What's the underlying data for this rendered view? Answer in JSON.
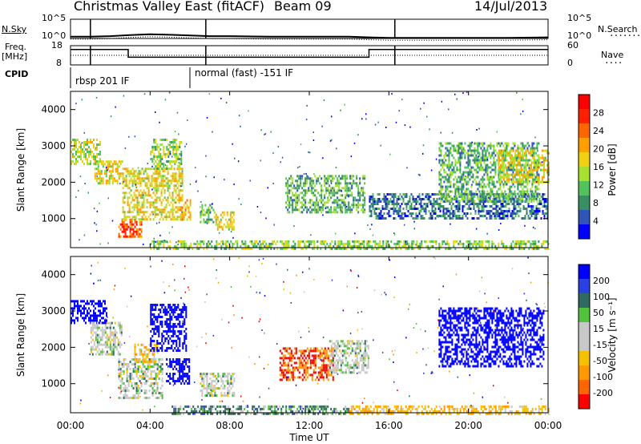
{
  "header": {
    "station": "Christmas Valley East (fitACF)",
    "beam": "Beam 09",
    "date": "14/Jul/2013"
  },
  "noise_panel": {
    "left_label": "N.Sky",
    "right_label": "N.Search",
    "ticks_left": [
      "10^5",
      "10^0"
    ],
    "ticks_right": [
      "10^5",
      "10^0"
    ]
  },
  "freq_panel": {
    "left_label_1": "Freq.",
    "left_label_2": "[MHz]",
    "right_label": "Nave",
    "ticks_left": [
      "18",
      "8"
    ],
    "ticks_right": [
      "60",
      "0"
    ]
  },
  "cpid": {
    "label": "CPID",
    "segments": [
      {
        "text": "rbsp 201 IF",
        "start_h": 0,
        "end_h": 6
      },
      {
        "text": "normal (fast) -151 IF",
        "start_h": 6,
        "end_h": 24
      }
    ]
  },
  "power_panel": {
    "ylabel": "Slant Range [km]",
    "colorbar_label": "Power [dB]",
    "colorbar_ticks": [
      "28",
      "24",
      "20",
      "16",
      "12",
      "8",
      "4"
    ]
  },
  "velocity_panel": {
    "ylabel": "Slant Range [km]",
    "colorbar_label": "Velocity [m s⁻¹]",
    "colorbar_ticks": [
      "200",
      "100",
      "50",
      "15",
      "-15",
      "-50",
      "-100",
      "-200"
    ]
  },
  "x_axis": {
    "label": "Time UT",
    "ticks": [
      "00:00",
      "04:00",
      "08:00",
      "12:00",
      "16:00",
      "20:00",
      "00:00"
    ]
  },
  "colors": {
    "power_scale": [
      "#0000ff",
      "#2f56b7",
      "#3a8f62",
      "#52c35c",
      "#a9e030",
      "#f0d010",
      "#ffa000",
      "#ff6600",
      "#ff2000",
      "#ff0000"
    ],
    "velocity_scale": [
      "#0000ff",
      "#2a40e0",
      "#306a60",
      "#52c33c",
      "#c8c8c8",
      "#c8c8c8",
      "#f5c000",
      "#ff9900",
      "#ff6600",
      "#ff0000"
    ]
  },
  "chart_data": [
    {
      "type": "line",
      "name": "noise",
      "x_range_hours": [
        0,
        24
      ],
      "y_scale": "log",
      "y_range": [
        1,
        100000
      ],
      "series": [
        {
          "x": [
            0,
            1,
            2,
            3,
            4,
            5,
            6,
            7,
            8,
            10,
            12,
            14,
            15,
            16,
            18,
            20,
            22,
            24
          ],
          "y": [
            3,
            3,
            4,
            8,
            12,
            9,
            6,
            4,
            4,
            3,
            3,
            3,
            2,
            1.5,
            1.5,
            1.5,
            1.5,
            2
          ]
        }
      ]
    },
    {
      "type": "line",
      "name": "frequency",
      "x_range_hours": [
        0,
        24
      ],
      "y_range": [
        8,
        18
      ],
      "series": [
        {
          "x": [
            0,
            2.9,
            2.9,
            15,
            15,
            24
          ],
          "y": [
            16,
            16,
            12,
            12,
            16,
            16
          ]
        }
      ]
    },
    {
      "type": "heatmap",
      "name": "power",
      "x_range_hours": [
        0,
        24
      ],
      "y_range_km": [
        200,
        4500
      ],
      "yticks_km": [
        1000,
        2000,
        3000,
        4000
      ],
      "value_range_db": [
        0,
        30
      ],
      "regions": [
        {
          "t0": 0.0,
          "t1": 1.6,
          "r0": 2500,
          "r1": 3200,
          "v": 14
        },
        {
          "t0": 1.2,
          "t1": 2.6,
          "r0": 2000,
          "r1": 2600,
          "v": 16
        },
        {
          "t0": 2.4,
          "t1": 3.6,
          "r0": 500,
          "r1": 1000,
          "v": 24
        },
        {
          "t0": 2.6,
          "t1": 5.6,
          "r0": 1000,
          "r1": 2400,
          "v": 16
        },
        {
          "t0": 4.0,
          "t1": 5.6,
          "r0": 2400,
          "r1": 3200,
          "v": 12
        },
        {
          "t0": 5.5,
          "t1": 6.0,
          "r0": 1000,
          "r1": 1600,
          "v": 18
        },
        {
          "t0": 6.5,
          "t1": 7.2,
          "r0": 900,
          "r1": 1400,
          "v": 10
        },
        {
          "t0": 7.2,
          "t1": 8.2,
          "r0": 700,
          "r1": 1200,
          "v": 16
        },
        {
          "t0": 10.8,
          "t1": 14.8,
          "r0": 1200,
          "r1": 2200,
          "v": 10
        },
        {
          "t0": 15.0,
          "t1": 24.0,
          "r0": 1000,
          "r1": 1700,
          "v": 6
        },
        {
          "t0": 18.5,
          "t1": 23.5,
          "r0": 1500,
          "r1": 3100,
          "v": 10
        },
        {
          "t0": 21.5,
          "t1": 24.0,
          "r0": 2000,
          "r1": 2900,
          "v": 16
        },
        {
          "t0": 4.0,
          "t1": 24.0,
          "r0": 200,
          "r1": 400,
          "v": 12
        }
      ]
    },
    {
      "type": "heatmap",
      "name": "velocity",
      "x_range_hours": [
        0,
        24
      ],
      "y_range_km": [
        200,
        4500
      ],
      "yticks_km": [
        1000,
        2000,
        3000,
        4000
      ],
      "value_range_mps": [
        -250,
        250
      ],
      "regions": [
        {
          "t0": 0.0,
          "t1": 1.8,
          "r0": 2700,
          "r1": 3300,
          "v": 200
        },
        {
          "t0": 1.0,
          "t1": 2.6,
          "r0": 1800,
          "r1": 2700,
          "v": 0
        },
        {
          "t0": 2.4,
          "t1": 4.6,
          "r0": 600,
          "r1": 1700,
          "v": 0
        },
        {
          "t0": 3.2,
          "t1": 4.4,
          "r0": 1600,
          "r1": 2100,
          "v": -60
        },
        {
          "t0": 4.0,
          "t1": 5.8,
          "r0": 1900,
          "r1": 3200,
          "v": 200
        },
        {
          "t0": 4.8,
          "t1": 6.0,
          "r0": 1000,
          "r1": 1700,
          "v": 220
        },
        {
          "t0": 6.5,
          "t1": 8.2,
          "r0": 700,
          "r1": 1300,
          "v": 0
        },
        {
          "t0": 10.5,
          "t1": 13.2,
          "r0": 1100,
          "r1": 2000,
          "v": -150
        },
        {
          "t0": 13.0,
          "t1": 15.0,
          "r0": 1300,
          "r1": 2200,
          "v": 0
        },
        {
          "t0": 18.5,
          "t1": 23.8,
          "r0": 1500,
          "r1": 3100,
          "v": 200
        },
        {
          "t0": 5.0,
          "t1": 14.0,
          "r0": 200,
          "r1": 400,
          "v": 40
        },
        {
          "t0": 14.0,
          "t1": 24.0,
          "r0": 200,
          "r1": 400,
          "v": -60
        }
      ]
    }
  ]
}
